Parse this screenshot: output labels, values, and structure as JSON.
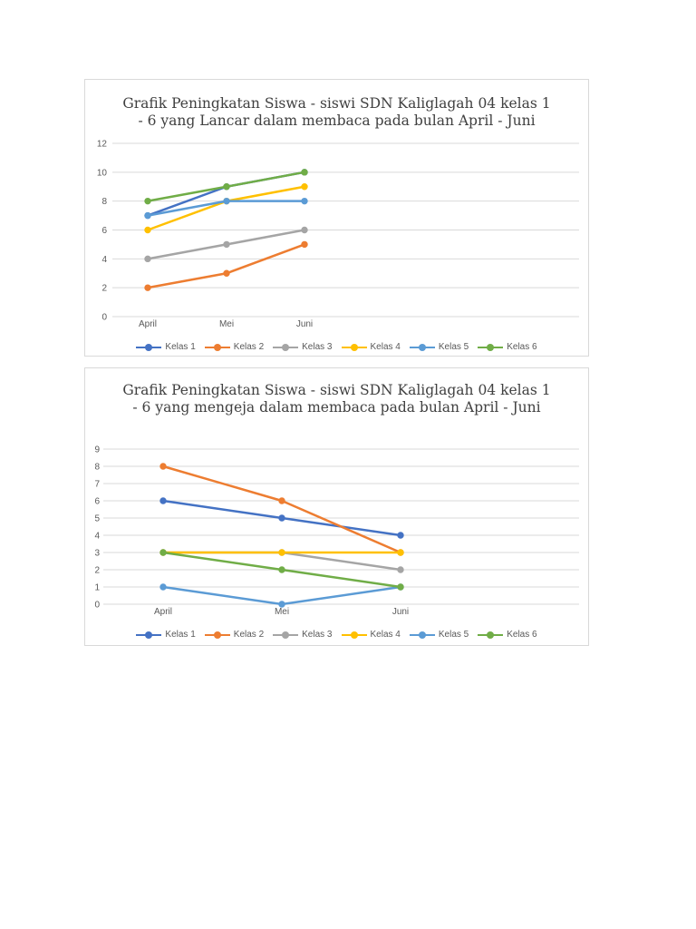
{
  "chart_data": [
    {
      "type": "line",
      "title": "Grafik Peningkatan Siswa - siswi SDN Kaliglagah 04 kelas 1 - 6 yang Lancar dalam membaca pada bulan April - Juni",
      "categories": [
        "April",
        "Mei",
        "Juni"
      ],
      "ylim": [
        0,
        12
      ],
      "yticks": [
        0,
        2,
        4,
        6,
        8,
        10,
        12
      ],
      "grid": true,
      "legend": "bottom",
      "series": [
        {
          "name": "Kelas 1",
          "color": "#4472c4",
          "values": [
            7,
            9,
            10
          ]
        },
        {
          "name": "Kelas 2",
          "color": "#ed7d31",
          "values": [
            2,
            3,
            5
          ]
        },
        {
          "name": "Kelas 3",
          "color": "#a5a5a5",
          "values": [
            4,
            5,
            6
          ]
        },
        {
          "name": "Kelas 4",
          "color": "#ffc000",
          "values": [
            6,
            8,
            9
          ]
        },
        {
          "name": "Kelas 5",
          "color": "#5b9bd5",
          "values": [
            7,
            8,
            8
          ]
        },
        {
          "name": "Kelas 6",
          "color": "#70ad47",
          "values": [
            8,
            9,
            10
          ]
        }
      ]
    },
    {
      "type": "line",
      "title": "Grafik Peningkatan Siswa - siswi SDN Kaliglagah 04 kelas 1 - 6 yang mengeja dalam membaca pada bulan April - Juni",
      "categories": [
        "April",
        "Mei",
        "Juni"
      ],
      "ylim": [
        0,
        9
      ],
      "yticks": [
        0,
        1,
        2,
        3,
        4,
        5,
        6,
        7,
        8,
        9
      ],
      "grid": true,
      "legend": "bottom",
      "series": [
        {
          "name": "Kelas 1",
          "color": "#4472c4",
          "values": [
            6,
            5,
            4
          ]
        },
        {
          "name": "Kelas 2",
          "color": "#ed7d31",
          "values": [
            8,
            6,
            3
          ]
        },
        {
          "name": "Kelas 3",
          "color": "#a5a5a5",
          "values": [
            3,
            3,
            2
          ]
        },
        {
          "name": "Kelas 4",
          "color": "#ffc000",
          "values": [
            3,
            3,
            3
          ]
        },
        {
          "name": "Kelas 5",
          "color": "#5b9bd5",
          "values": [
            1,
            0,
            1
          ]
        },
        {
          "name": "Kelas 6",
          "color": "#70ad47",
          "values": [
            3,
            2,
            1
          ]
        }
      ]
    }
  ]
}
